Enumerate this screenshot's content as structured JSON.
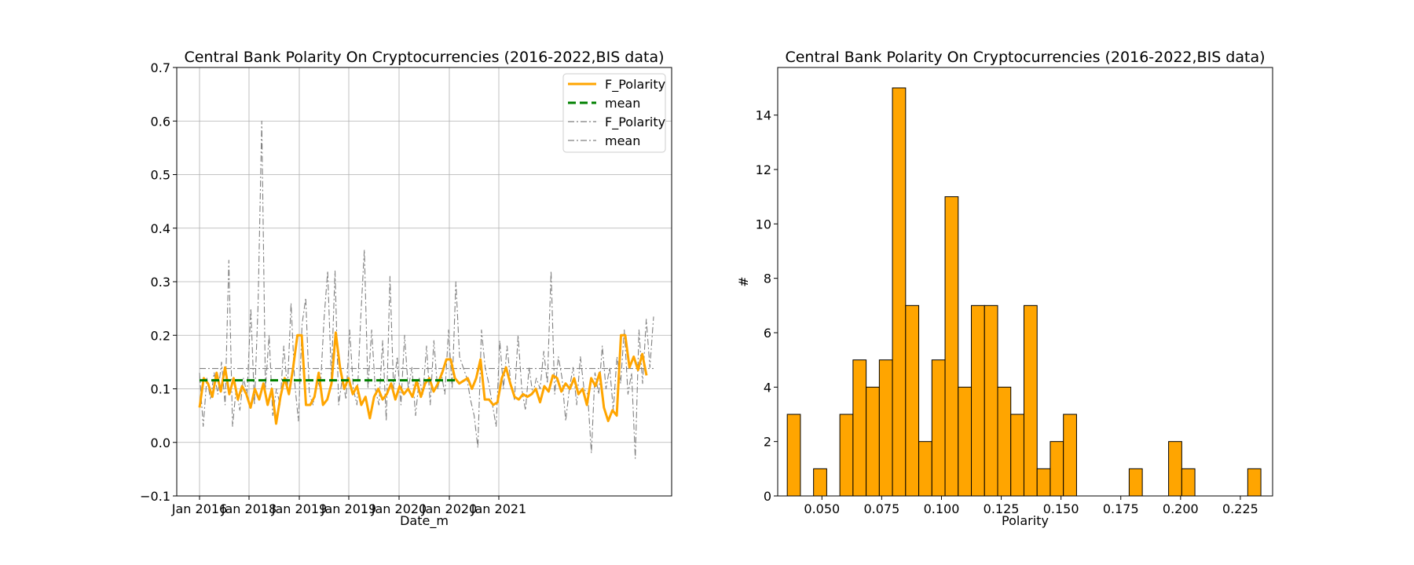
{
  "chart_data": [
    {
      "type": "line",
      "title": "Central Bank Polarity On Cryptocurrencies (2016-2022,BIS data)",
      "xlabel": "Date_m",
      "ylabel": "",
      "ylim": [
        -0.1,
        0.7
      ],
      "yticks": [
        "−0.1",
        "0.0",
        "0.1",
        "0.2",
        "0.3",
        "0.4",
        "0.5",
        "0.6",
        "0.7"
      ],
      "xticks": [
        "Jan 2016",
        "Jan 2018",
        "Jan 2019",
        "Jan 2019",
        "Jan 2020",
        "Jan 2020",
        "Jan 2021"
      ],
      "grid": true,
      "legend_position": "top-right",
      "legend": [
        "F_Polarity",
        "mean",
        "F_Polarity",
        "mean"
      ],
      "series": [
        {
          "name": "F_Polarity",
          "color": "#ffa500",
          "style": "solid",
          "values": [
            0.065,
            0.12,
            0.11,
            0.085,
            0.13,
            0.095,
            0.14,
            0.09,
            0.12,
            0.08,
            0.105,
            0.09,
            0.065,
            0.1,
            0.08,
            0.11,
            0.07,
            0.1,
            0.035,
            0.085,
            0.12,
            0.09,
            0.14,
            0.2,
            0.2,
            0.07,
            0.07,
            0.085,
            0.13,
            0.07,
            0.08,
            0.11,
            0.205,
            0.14,
            0.1,
            0.12,
            0.09,
            0.105,
            0.07,
            0.085,
            0.045,
            0.085,
            0.1,
            0.08,
            0.09,
            0.11,
            0.08,
            0.105,
            0.09,
            0.1,
            0.085,
            0.115,
            0.085,
            0.11,
            0.12,
            0.095,
            0.11,
            0.13,
            0.155,
            0.155,
            0.12,
            0.11,
            0.115,
            0.12,
            0.1,
            0.12,
            0.155,
            0.08,
            0.08,
            0.07,
            0.075,
            0.12,
            0.14,
            0.11,
            0.085,
            0.08,
            0.09,
            0.085,
            0.09,
            0.1,
            0.075,
            0.105,
            0.095,
            0.125,
            0.12,
            0.095,
            0.11,
            0.1,
            0.12,
            0.09,
            0.1,
            0.07,
            0.12,
            0.105,
            0.13,
            0.065,
            0.04,
            0.06,
            0.05,
            0.2,
            0.2,
            0.14,
            0.16,
            0.135,
            0.165,
            0.125
          ]
        },
        {
          "name": "mean",
          "color": "#008000",
          "style": "dashed",
          "values": [
            0.116,
            0.116
          ]
        },
        {
          "name": "F_Polarity",
          "color": "#808080",
          "style": "dashdot",
          "values": [
            0.13,
            0.03,
            0.12,
            0.08,
            0.13,
            0.09,
            0.15,
            0.07,
            0.34,
            0.03,
            0.1,
            0.06,
            0.12,
            0.09,
            0.25,
            0.07,
            0.26,
            0.6,
            0.1,
            0.2,
            0.05,
            0.1,
            0.07,
            0.18,
            0.1,
            0.26,
            0.11,
            0.04,
            0.22,
            0.27,
            0.09,
            0.07,
            0.12,
            0.1,
            0.23,
            0.32,
            0.12,
            0.32,
            0.07,
            0.12,
            0.08,
            0.21,
            0.1,
            0.07,
            0.23,
            0.36,
            0.1,
            0.21,
            0.1,
            0.07,
            0.19,
            0.04,
            0.31,
            0.1,
            0.16,
            0.07,
            0.2,
            0.1,
            0.14,
            0.05,
            0.12,
            0.09,
            0.18,
            0.07,
            0.19,
            0.1,
            0.13,
            0.09,
            0.21,
            0.1,
            0.3,
            0.16,
            0.14,
            0.12,
            0.08,
            0.05,
            -0.01,
            0.21,
            0.14,
            0.11,
            0.07,
            0.03,
            0.19,
            0.1,
            0.18,
            0.11,
            0.08,
            0.2,
            0.1,
            0.06,
            0.14,
            0.09,
            0.12,
            0.1,
            0.17,
            0.11,
            0.32,
            0.09,
            0.16,
            0.12,
            0.04,
            0.1,
            0.14,
            0.07,
            0.16,
            0.1,
            0.09,
            -0.02,
            0.13,
            0.09,
            0.18,
            0.1,
            0.14,
            0.06,
            0.16,
            0.11,
            0.21,
            0.09,
            0.13,
            -0.03,
            0.21,
            0.11,
            0.23,
            0.14,
            0.235
          ]
        },
        {
          "name": "mean",
          "color": "#808080",
          "style": "dashdot",
          "values": [
            0.138,
            0.138
          ]
        }
      ]
    },
    {
      "type": "bar",
      "title": "Central Bank Polarity On Cryptocurrencies (2016-2022,BIS data)",
      "xlabel": "Polarity",
      "ylabel": "#",
      "xlim": [
        0.0315,
        0.2385
      ],
      "ylim": [
        0,
        15.75
      ],
      "xticks": [
        "0.050",
        "0.075",
        "0.100",
        "0.125",
        "0.150",
        "0.175",
        "0.200",
        "0.225"
      ],
      "yticks": [
        "0",
        "2",
        "4",
        "6",
        "8",
        "10",
        "12",
        "14"
      ],
      "bar_color": "#ffa500",
      "bins": [
        {
          "x0": 0.0355,
          "x1": 0.041,
          "count": 3
        },
        {
          "x0": 0.0465,
          "x1": 0.052,
          "count": 1
        },
        {
          "x0": 0.0575,
          "x1": 0.063,
          "count": 3
        },
        {
          "x0": 0.063,
          "x1": 0.0685,
          "count": 5
        },
        {
          "x0": 0.0685,
          "x1": 0.074,
          "count": 4
        },
        {
          "x0": 0.074,
          "x1": 0.0795,
          "count": 5
        },
        {
          "x0": 0.0795,
          "x1": 0.085,
          "count": 15
        },
        {
          "x0": 0.085,
          "x1": 0.0905,
          "count": 7
        },
        {
          "x0": 0.0905,
          "x1": 0.096,
          "count": 2
        },
        {
          "x0": 0.096,
          "x1": 0.1015,
          "count": 5
        },
        {
          "x0": 0.1015,
          "x1": 0.107,
          "count": 11
        },
        {
          "x0": 0.107,
          "x1": 0.1125,
          "count": 4
        },
        {
          "x0": 0.1125,
          "x1": 0.118,
          "count": 7
        },
        {
          "x0": 0.118,
          "x1": 0.1235,
          "count": 7
        },
        {
          "x0": 0.1235,
          "x1": 0.129,
          "count": 4
        },
        {
          "x0": 0.129,
          "x1": 0.1345,
          "count": 3
        },
        {
          "x0": 0.1345,
          "x1": 0.14,
          "count": 7
        },
        {
          "x0": 0.14,
          "x1": 0.1455,
          "count": 1
        },
        {
          "x0": 0.1455,
          "x1": 0.151,
          "count": 2
        },
        {
          "x0": 0.151,
          "x1": 0.1565,
          "count": 3
        },
        {
          "x0": 0.1785,
          "x1": 0.184,
          "count": 1
        },
        {
          "x0": 0.195,
          "x1": 0.2005,
          "count": 2
        },
        {
          "x0": 0.2005,
          "x1": 0.206,
          "count": 1
        },
        {
          "x0": 0.2281,
          "x1": 0.2336,
          "count": 1
        }
      ]
    }
  ]
}
